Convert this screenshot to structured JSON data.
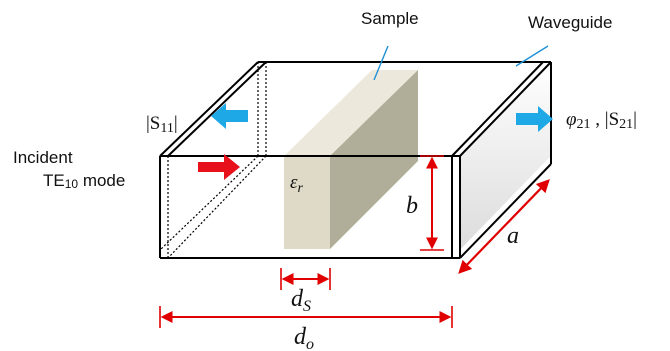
{
  "labels": {
    "sample": "Sample",
    "waveguide": "Waveguide",
    "s11": "|S11|",
    "s11_main": "|S",
    "s11_sub": "11",
    "s11_end": "|",
    "phi_main": "φ",
    "phi_sub": "21",
    "phi_sep": " , ",
    "s21_main": "|S",
    "s21_sub": "21",
    "s21_end": "|",
    "incident_line1": "Incident",
    "incident_line2_a": "TE",
    "incident_line2_sub": "10",
    "incident_line2_b": " mode",
    "eps_main": "ε",
    "eps_sub": "r",
    "b": "b",
    "a": "a",
    "ds_main": "d",
    "ds_sub": "S",
    "do_main": "d",
    "do_sub": "o"
  },
  "colors": {
    "outline": "#000000",
    "dimension": "#e00000",
    "incident_arrow": "#e8101a",
    "reflected_arrow": "#1ea8e6",
    "sample_front": "#dfdac7",
    "sample_side": "#b0ad98",
    "sample_top": "#ece9dc",
    "port_shade": "#e2e2e2"
  }
}
